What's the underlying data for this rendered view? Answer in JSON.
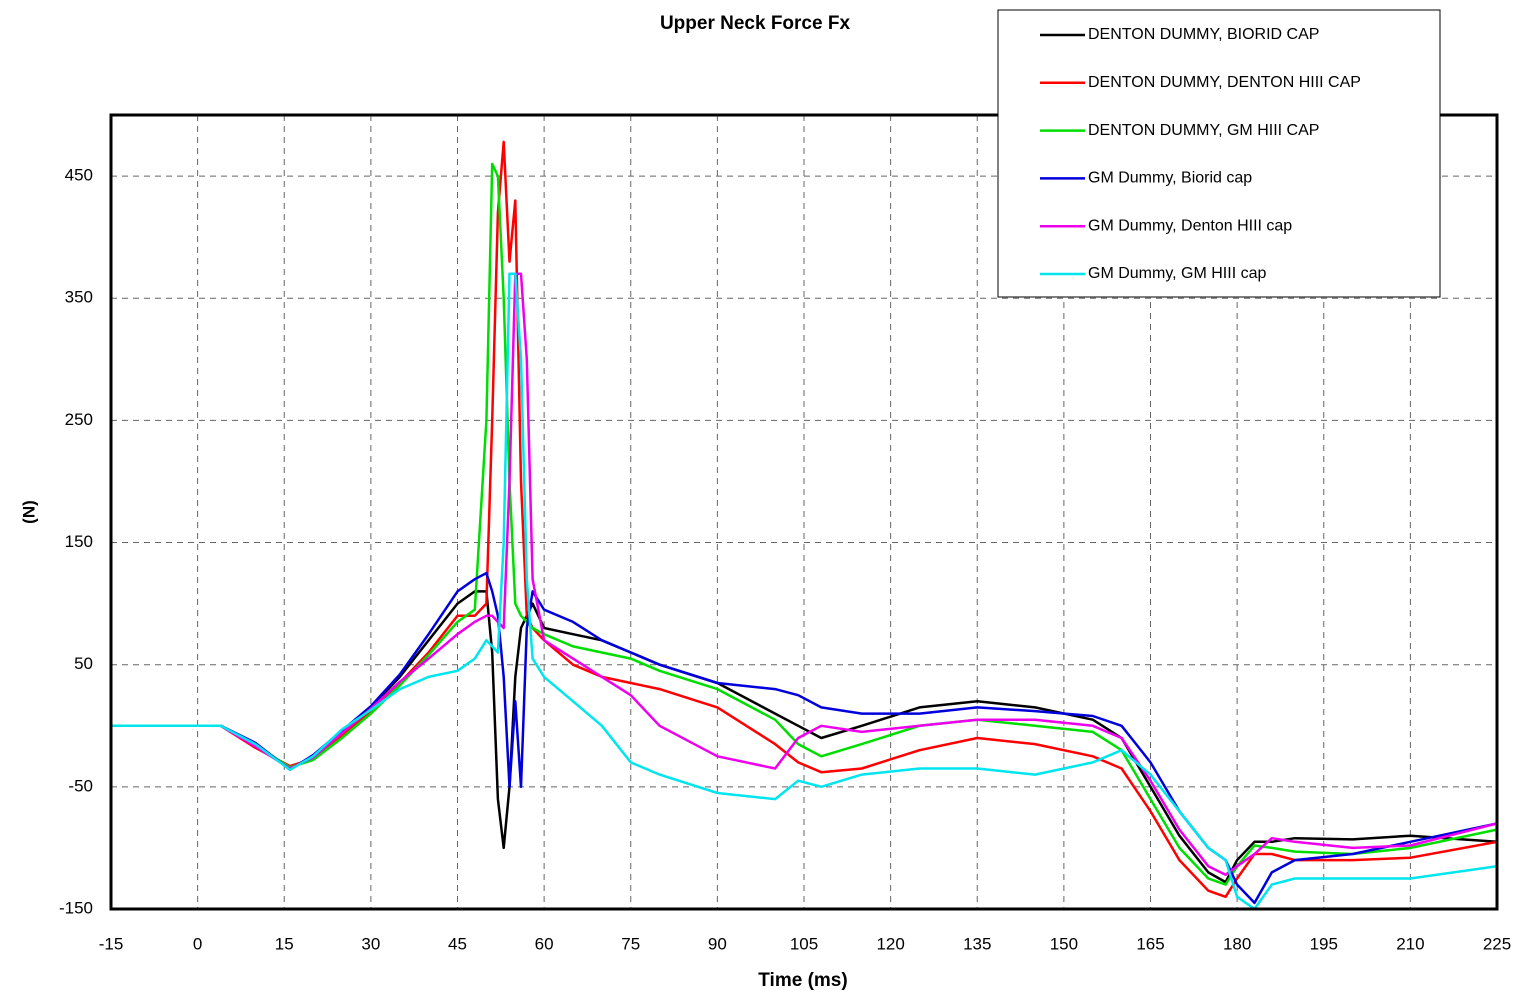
{
  "chart_data": {
    "type": "line",
    "title": "Upper Neck Force Fx",
    "x_label": "Time (ms)",
    "y_label": "(N)",
    "x": [
      -15,
      0,
      4,
      10,
      16,
      20,
      25,
      30,
      35,
      40,
      45,
      48,
      50,
      51,
      52,
      53,
      54,
      55,
      56,
      57,
      58,
      60,
      65,
      70,
      75,
      80,
      90,
      100,
      104,
      108,
      115,
      125,
      135,
      145,
      155,
      160,
      165,
      170,
      175,
      178,
      180,
      183,
      186,
      190,
      200,
      210,
      225
    ],
    "series": [
      {
        "name": "DENTON DUMMY, BIORID CAP",
        "color": "#000000",
        "values": [
          0,
          0,
          0,
          -15,
          -35,
          -25,
          -5,
          15,
          40,
          70,
          100,
          110,
          110,
          60,
          -60,
          -100,
          -50,
          40,
          80,
          90,
          100,
          80,
          75,
          70,
          60,
          50,
          35,
          10,
          0,
          -10,
          0,
          15,
          20,
          15,
          5,
          -10,
          -50,
          -90,
          -120,
          -128,
          -110,
          -95,
          -95,
          -92,
          -93,
          -90,
          -95
        ]
      },
      {
        "name": "DENTON DUMMY, DENTON HIII CAP",
        "color": "#ff0000",
        "values": [
          0,
          0,
          0,
          -18,
          -33,
          -27,
          -8,
          12,
          35,
          60,
          90,
          90,
          100,
          250,
          420,
          478,
          380,
          430,
          200,
          90,
          80,
          70,
          50,
          40,
          35,
          30,
          15,
          -15,
          -30,
          -38,
          -35,
          -20,
          -10,
          -15,
          -25,
          -35,
          -70,
          -110,
          -135,
          -140,
          -125,
          -105,
          -105,
          -110,
          -110,
          -108,
          -95
        ]
      },
      {
        "name": "DENTON DUMMY, GM HIII CAP",
        "color": "#00dd00",
        "values": [
          0,
          0,
          0,
          -16,
          -34,
          -28,
          -10,
          10,
          33,
          58,
          85,
          95,
          250,
          460,
          450,
          350,
          200,
          100,
          90,
          85,
          80,
          75,
          65,
          60,
          55,
          45,
          30,
          5,
          -15,
          -25,
          -15,
          0,
          5,
          0,
          -5,
          -20,
          -60,
          -100,
          -125,
          -130,
          -115,
          -98,
          -100,
          -103,
          -105,
          -100,
          -85
        ]
      },
      {
        "name": "GM Dummy, Biorid cap",
        "color": "#0000dd",
        "values": [
          0,
          0,
          0,
          -14,
          -36,
          -24,
          -4,
          16,
          42,
          75,
          110,
          120,
          125,
          110,
          90,
          40,
          -50,
          20,
          -50,
          80,
          110,
          95,
          85,
          70,
          60,
          50,
          35,
          30,
          25,
          15,
          10,
          10,
          15,
          12,
          8,
          0,
          -30,
          -70,
          -100,
          -110,
          -130,
          -145,
          -120,
          -110,
          -105,
          -95,
          -80
        ]
      },
      {
        "name": "GM Dummy, Denton HIII cap",
        "color": "#ee00ee",
        "values": [
          0,
          0,
          0,
          -17,
          -35,
          -26,
          -6,
          14,
          36,
          55,
          75,
          85,
          90,
          90,
          85,
          80,
          200,
          370,
          370,
          300,
          120,
          70,
          55,
          40,
          25,
          0,
          -25,
          -35,
          -10,
          0,
          -5,
          0,
          5,
          5,
          0,
          -10,
          -45,
          -85,
          -115,
          -122,
          -115,
          -105,
          -92,
          -95,
          -100,
          -98,
          -80
        ]
      },
      {
        "name": "GM Dummy, GM HIII cap",
        "color": "#00e5ee",
        "values": [
          0,
          0,
          0,
          -15,
          -36,
          -25,
          -3,
          13,
          30,
          40,
          45,
          55,
          70,
          65,
          60,
          150,
          370,
          370,
          300,
          120,
          55,
          40,
          20,
          0,
          -30,
          -40,
          -55,
          -60,
          -45,
          -50,
          -40,
          -35,
          -35,
          -40,
          -30,
          -20,
          -40,
          -70,
          -100,
          -110,
          -140,
          -150,
          -130,
          -125,
          -125,
          -125,
          -115
        ]
      }
    ],
    "xlim": [
      -15,
      225
    ],
    "xticks": [
      -15,
      0,
      15,
      30,
      45,
      60,
      75,
      90,
      105,
      120,
      135,
      150,
      165,
      180,
      195,
      210,
      225
    ],
    "ylim": [
      -150,
      500
    ],
    "yticks": [
      -150,
      -50,
      50,
      150,
      250,
      350,
      450
    ],
    "grid": true,
    "legend": "upper right"
  }
}
